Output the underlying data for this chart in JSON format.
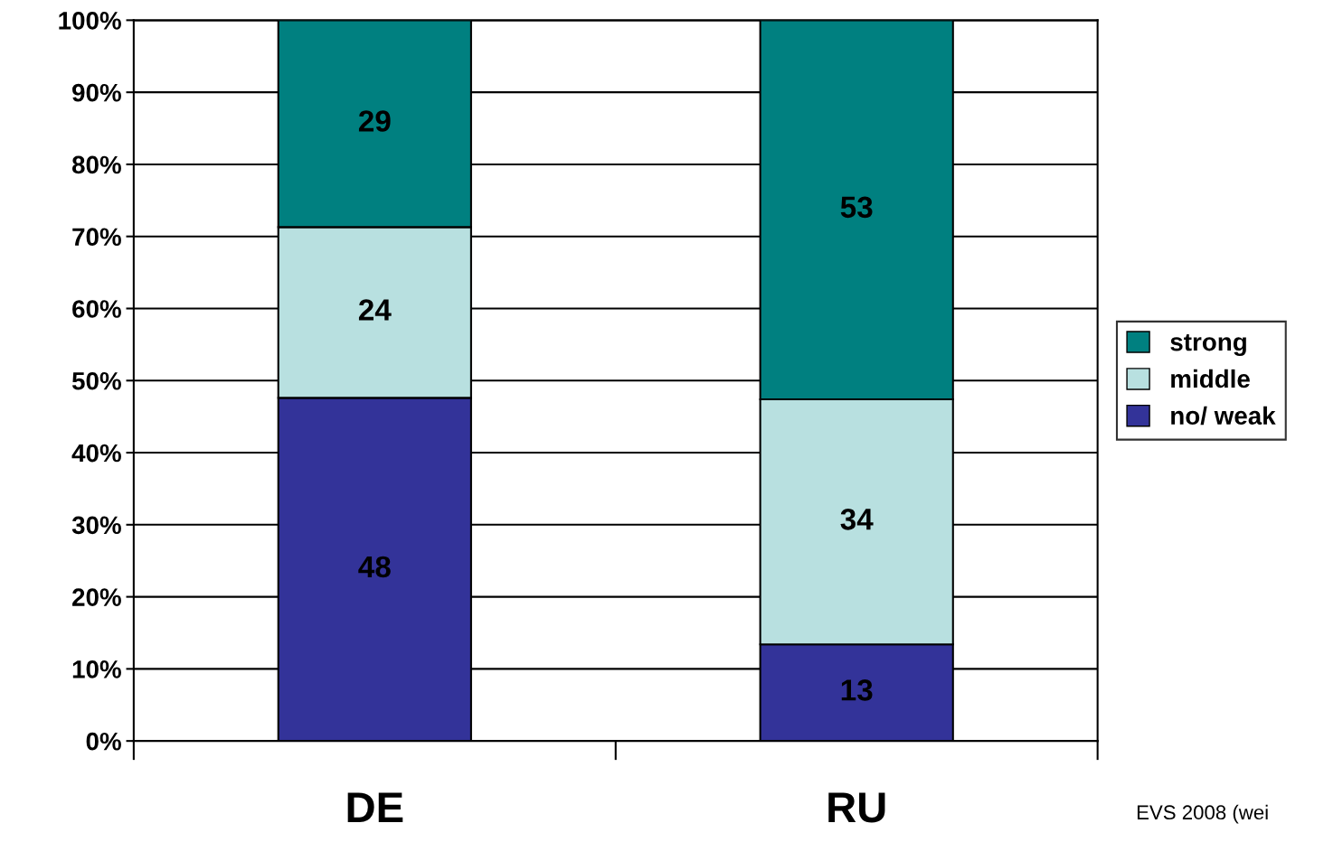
{
  "chart_data": {
    "type": "bar",
    "stacked": true,
    "categories": [
      "DE",
      "RU"
    ],
    "series": [
      {
        "name": "no/ weak",
        "color": "#333399",
        "values": [
          47.6,
          13.4
        ],
        "value_labels": [
          "48",
          "13"
        ]
      },
      {
        "name": "middle",
        "color": "#b8e0e0",
        "values": [
          23.7,
          34.0
        ],
        "value_labels": [
          "24",
          "34"
        ]
      },
      {
        "name": "strong",
        "color": "#008080",
        "values": [
          28.7,
          52.6
        ],
        "value_labels": [
          "29",
          "53"
        ]
      }
    ],
    "ylim": [
      0,
      100
    ],
    "yticks": [
      {
        "value": 0,
        "label": "0%"
      },
      {
        "value": 10,
        "label": "10%"
      },
      {
        "value": 20,
        "label": "20%"
      },
      {
        "value": 30,
        "label": "30%"
      },
      {
        "value": 40,
        "label": "40%"
      },
      {
        "value": 50,
        "label": "50%"
      },
      {
        "value": 60,
        "label": "60%"
      },
      {
        "value": 70,
        "label": "70%"
      },
      {
        "value": 80,
        "label": "80%"
      },
      {
        "value": 90,
        "label": "90%"
      },
      {
        "value": 100,
        "label": "100%"
      }
    ],
    "grid": "y",
    "legend": "right",
    "annotations": [
      "EVS 2008 (wei"
    ]
  }
}
